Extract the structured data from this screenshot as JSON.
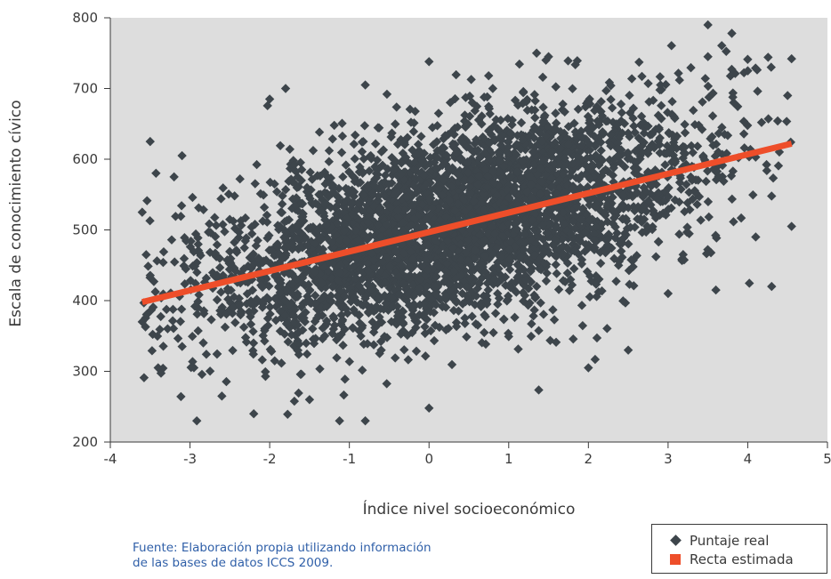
{
  "chart_data": {
    "type": "scatter",
    "xlabel": "Índice nivel socioeconómico",
    "ylabel": "Escala de conocimiento cívico",
    "xlim": [
      -4,
      5
    ],
    "ylim": [
      200,
      800
    ],
    "x_ticks": [
      "-4",
      "-3",
      "-2",
      "-1",
      "0",
      "1",
      "2",
      "3",
      "4",
      "5"
    ],
    "y_ticks": [
      "200",
      "300",
      "400",
      "500",
      "600",
      "700",
      "800"
    ],
    "grid": false,
    "background_color": "#dddddd",
    "legend_position": "bottom-right",
    "series": [
      {
        "name": "Puntaje real",
        "kind": "points",
        "marker": "diamond",
        "color": "#3d454b",
        "distribution": {
          "count": 4200,
          "x_mean": 0.3,
          "x_sd": 1.55,
          "x_min": -3.6,
          "x_max": 4.55,
          "y_residual_sd": 68,
          "y_min": 230,
          "y_max": 790
        },
        "points": [
          {
            "x": -3.5,
            "y": 625
          },
          {
            "x": -3.6,
            "y": 525
          },
          {
            "x": -3.55,
            "y": 465
          },
          {
            "x": -3.6,
            "y": 370
          },
          {
            "x": -3.4,
            "y": 305
          },
          {
            "x": -3.2,
            "y": 575
          },
          {
            "x": -3.1,
            "y": 605
          },
          {
            "x": -2.6,
            "y": 265
          },
          {
            "x": -2.2,
            "y": 240
          },
          {
            "x": -2.0,
            "y": 685
          },
          {
            "x": -1.8,
            "y": 700
          },
          {
            "x": -1.5,
            "y": 260
          },
          {
            "x": -0.8,
            "y": 230
          },
          {
            "x": -0.6,
            "y": 330
          },
          {
            "x": -0.8,
            "y": 705
          },
          {
            "x": 0.0,
            "y": 738
          },
          {
            "x": 0.0,
            "y": 248
          },
          {
            "x": 0.8,
            "y": 700
          },
          {
            "x": 1.35,
            "y": 750
          },
          {
            "x": 1.5,
            "y": 745
          },
          {
            "x": 2.0,
            "y": 305
          },
          {
            "x": 2.5,
            "y": 330
          },
          {
            "x": 3.0,
            "y": 410
          },
          {
            "x": 3.5,
            "y": 790
          },
          {
            "x": 3.5,
            "y": 745
          },
          {
            "x": 3.8,
            "y": 778
          },
          {
            "x": 4.0,
            "y": 725
          },
          {
            "x": 4.3,
            "y": 420
          },
          {
            "x": 4.55,
            "y": 742
          },
          {
            "x": 4.55,
            "y": 505
          },
          {
            "x": 4.5,
            "y": 690
          },
          {
            "x": 4.1,
            "y": 490
          },
          {
            "x": 3.6,
            "y": 415
          }
        ]
      },
      {
        "name": "Recta estimada",
        "kind": "line",
        "color": "#ee4e2a",
        "points": [
          {
            "x": -3.6,
            "y": 398
          },
          {
            "x": 4.55,
            "y": 622
          }
        ]
      }
    ]
  },
  "source_note": {
    "line1": "Fuente: Elaboración propia utilizando información",
    "line2": "de las bases de datos ICCS 2009."
  },
  "legend": {
    "items": [
      {
        "label": "Puntaje real",
        "icon": "diamond-marker-icon"
      },
      {
        "label": "Recta estimada",
        "icon": "square-marker-icon"
      }
    ]
  }
}
